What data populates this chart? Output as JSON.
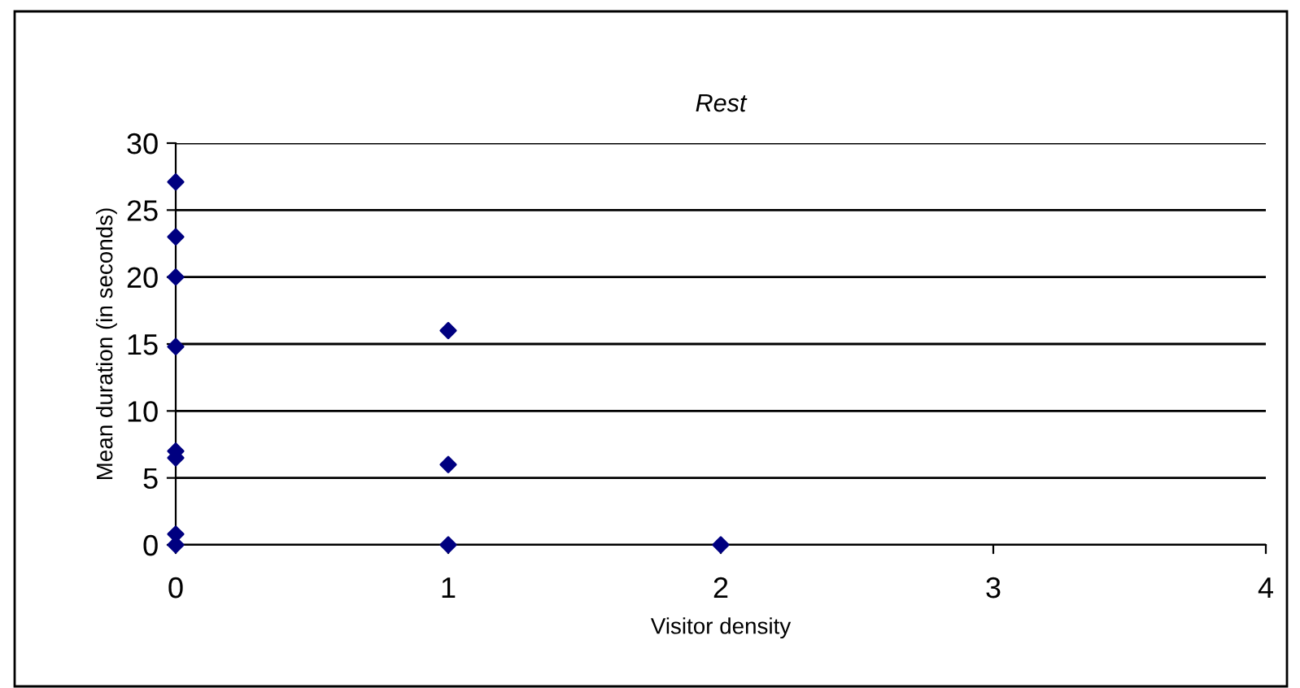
{
  "chart_data": {
    "type": "scatter",
    "title": "Rest",
    "xlabel": "Visitor density",
    "ylabel": "Mean duration (in seconds)",
    "x": [
      0,
      0,
      0,
      0,
      0,
      0,
      0,
      0,
      1,
      1,
      1,
      2
    ],
    "series": [
      {
        "color": "#000080",
        "values": [
          27.1,
          23,
          20,
          14.8,
          7,
          6.5,
          0.8,
          0,
          16,
          6,
          0,
          0
        ]
      }
    ],
    "xlim": [
      0,
      4
    ],
    "xticks": [
      0,
      1,
      2,
      3,
      4
    ],
    "ylim": [
      0,
      30
    ],
    "yticks": [
      0,
      5,
      10,
      15,
      20,
      25,
      30
    ],
    "grid": "y",
    "marker": "diamond",
    "legend": false
  }
}
